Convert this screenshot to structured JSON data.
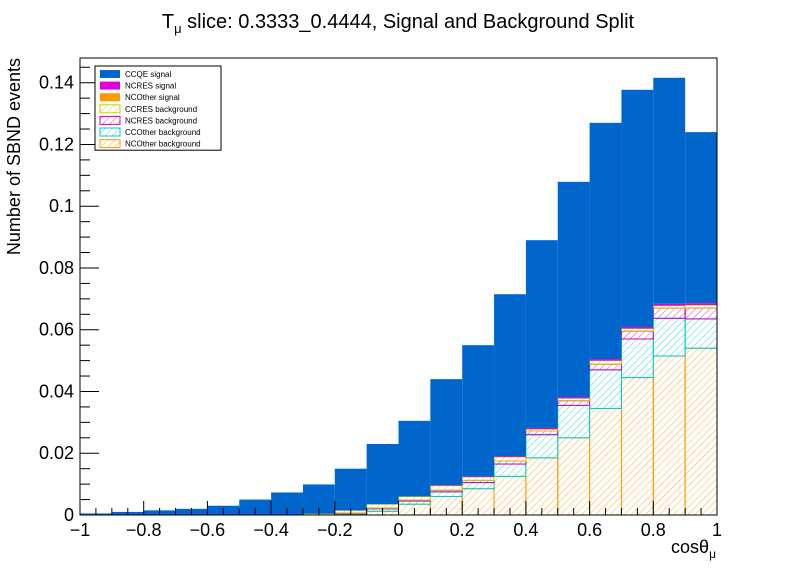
{
  "chart_data": {
    "type": "bar",
    "stacked": true,
    "title": "T",
    "title_sub": "μ",
    "title_rest": " slice: 0.3333_0.4444, Signal and Background Split",
    "xlabel": "cosθ",
    "xlabel_sub": "μ",
    "ylabel": "Number of SBND events",
    "xlim": [
      -1,
      1
    ],
    "ylim": [
      0,
      0.148
    ],
    "x_ticks": [
      "−1",
      "−0.8",
      "−0.6",
      "−0.4",
      "−0.2",
      "0",
      "0.2",
      "0.4",
      "0.6",
      "0.8",
      "1"
    ],
    "y_ticks": [
      "0",
      "0.02",
      "0.04",
      "0.06",
      "0.08",
      "0.1",
      "0.12",
      "0.14"
    ],
    "bin_edges": [
      -1.0,
      -0.9,
      -0.8,
      -0.7,
      -0.6,
      -0.5,
      -0.4,
      -0.3,
      -0.2,
      -0.1,
      0.0,
      0.1,
      0.2,
      0.3,
      0.4,
      0.5,
      0.6,
      0.7,
      0.8,
      0.9,
      1.0
    ],
    "legend_position": "top-left",
    "series": [
      {
        "name": "NCOther background",
        "style": "hatch",
        "color": "#ff9900",
        "values": [
          0,
          0,
          0,
          0,
          0,
          0,
          0,
          0,
          0.0002,
          0.0012,
          0.0035,
          0.006,
          0.0085,
          0.0125,
          0.0185,
          0.025,
          0.0345,
          0.0445,
          0.0515,
          0.054
        ]
      },
      {
        "name": "CCOther background",
        "style": "hatch",
        "color": "#00cccc",
        "values": [
          0,
          0,
          0,
          0,
          0,
          0,
          0,
          0,
          0.0003,
          0.0008,
          0.001,
          0.0015,
          0.002,
          0.004,
          0.0075,
          0.0105,
          0.0125,
          0.0125,
          0.0122,
          0.0095
        ]
      },
      {
        "name": "NCRES background",
        "style": "hatch",
        "color": "#cc00cc",
        "values": [
          0,
          0,
          0,
          0,
          0,
          0,
          0,
          0,
          0.0001,
          0.0002,
          0.0003,
          0.0005,
          0.0007,
          0.001,
          0.0012,
          0.0015,
          0.0018,
          0.0025,
          0.0033,
          0.0035
        ]
      },
      {
        "name": "CCRES background",
        "style": "hatch",
        "color": "#cccc00",
        "values": [
          0,
          0,
          0,
          0,
          0,
          0,
          0,
          0.0004,
          0.0009,
          0.0013,
          0.0012,
          0.0015,
          0.0011,
          0.0013,
          0.0006,
          0.0008,
          0.0012,
          0.0009,
          0.0008,
          0.001
        ]
      },
      {
        "name": "NCOther signal",
        "style": "solid",
        "color": "#ff9900",
        "values": [
          0,
          0,
          0,
          0,
          0,
          0,
          0,
          0,
          0,
          0,
          0,
          0,
          0,
          0,
          0,
          0,
          0,
          0,
          0,
          0
        ]
      },
      {
        "name": "NCRES signal",
        "style": "solid",
        "color": "#dd00dd",
        "values": [
          0,
          0,
          0,
          0,
          0,
          0,
          0,
          0,
          0,
          0,
          0,
          0.0002,
          0.0002,
          0.0003,
          0.0004,
          0.0004,
          0.0005,
          0.0005,
          0.0006,
          0.0006
        ]
      },
      {
        "name": "CCQE signal",
        "style": "solid",
        "color": "#0066cc",
        "values": [
          0.0005,
          0.001,
          0.0015,
          0.002,
          0.003,
          0.005,
          0.0073,
          0.0095,
          0.0135,
          0.0195,
          0.0245,
          0.0343,
          0.0425,
          0.0524,
          0.0608,
          0.0697,
          0.0765,
          0.0768,
          0.0732,
          0.0554
        ]
      }
    ],
    "legend_order": [
      "CCQE signal",
      "NCRES signal",
      "NCOther signal",
      "CCRES background",
      "NCRES background",
      "CCOther background",
      "NCOther background"
    ]
  }
}
